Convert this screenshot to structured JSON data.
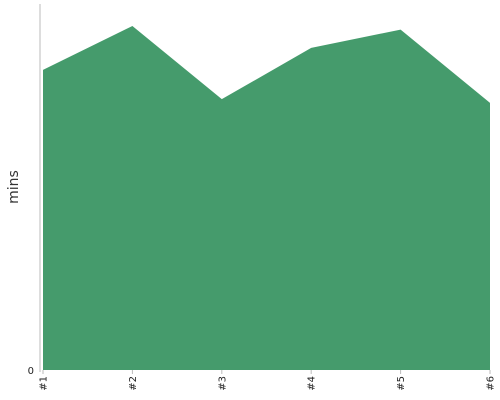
{
  "chart_data": {
    "type": "area",
    "categories": [
      "#1",
      "#2",
      "#3",
      "#4",
      "#5",
      "#6"
    ],
    "series": [
      {
        "values": [
          82,
          94,
          74,
          88,
          93,
          73
        ]
      }
    ],
    "ylabel": "mins",
    "y_tick_labels": [
      "0"
    ],
    "ylim": [
      0,
      100
    ],
    "grid": false,
    "legend": "none",
    "color": "#459b6c"
  }
}
